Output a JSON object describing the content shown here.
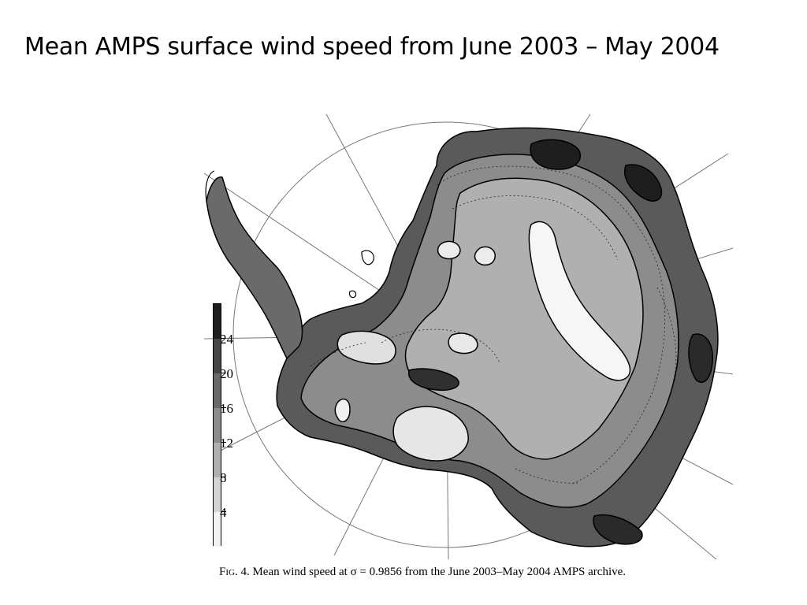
{
  "slide": {
    "title": "Mean AMPS surface wind speed from June 2003 – May 2004"
  },
  "figure": {
    "caption_label": "Fig. 4.",
    "caption_text": " Mean wind speed at σ = 0.9856 from the June 2003–May 2004 AMPS archive.",
    "colorbar": {
      "tick_labels": [
        "24",
        "20",
        "16",
        "12",
        "8",
        "4"
      ],
      "tick_values": [
        24,
        20,
        16,
        12,
        8,
        4
      ],
      "range": [
        0,
        28
      ],
      "shade_colors": [
        "#f2f2f2",
        "#d4d4d4",
        "#b0b0b0",
        "#8c8c8c",
        "#6a6a6a",
        "#464646",
        "#1e1e1e"
      ]
    }
  }
}
